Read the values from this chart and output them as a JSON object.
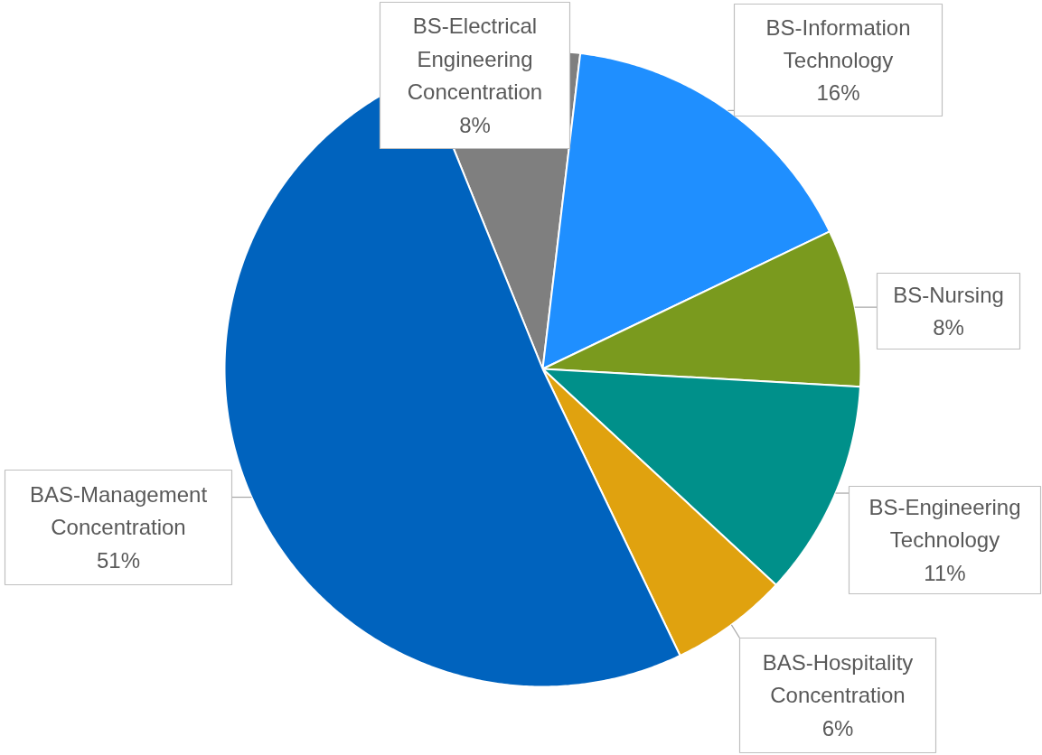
{
  "chart_data": {
    "type": "pie",
    "categories": [
      "BS-Electrical Engineering Concentration",
      "BS-Information Technology",
      "BS-Nursing",
      "BS-Engineering Technology",
      "BAS-Hospitality Concentration",
      "BAS-Management Concentration"
    ],
    "values": [
      8,
      16,
      8,
      11,
      6,
      51
    ],
    "colors": [
      "#7f7f7f",
      "#1f8fff",
      "#7a9a1e",
      "#00908a",
      "#e0a20f",
      "#0063be"
    ],
    "value_labels": [
      "8%",
      "16%",
      "8%",
      "11%",
      "6%",
      "51%"
    ]
  }
}
